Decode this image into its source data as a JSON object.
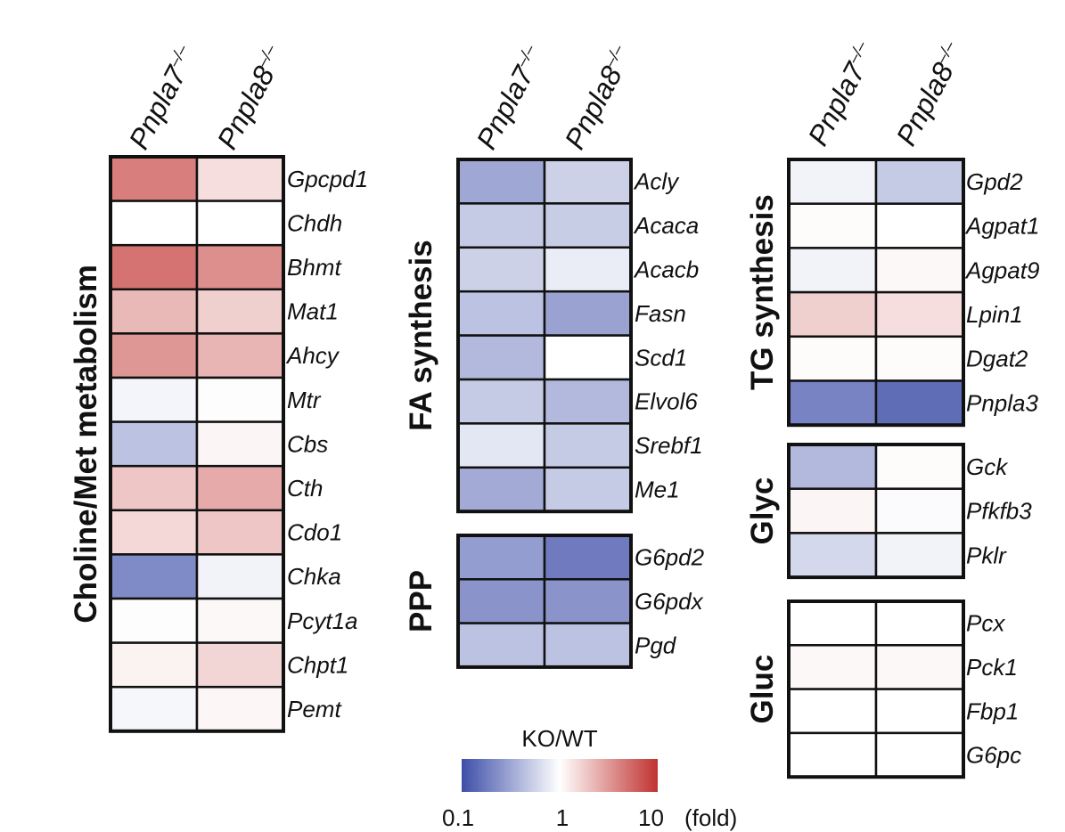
{
  "chart_data": {
    "type": "heatmap",
    "columns": [
      "Pnpla7",
      "Pnpla8"
    ],
    "column_superscript": "–/–",
    "scale": {
      "title": "KO/WT",
      "unit": "(fold)",
      "min": 0.1,
      "mid": 1,
      "max": 10,
      "tick_labels": [
        "0.1",
        "1",
        "10"
      ],
      "low_color": "#3d4ea8",
      "mid_color": "#ffffff",
      "high_color": "#c0322f"
    },
    "panels": [
      {
        "id": "choline",
        "title": "Choline/Met metabolism",
        "rows": [
          {
            "gene": "Gpcpd1",
            "values": [
              4.2,
              1.45
            ]
          },
          {
            "gene": "Chdh",
            "values": [
              1.0,
              1.0
            ]
          },
          {
            "gene": "Bhmt",
            "values": [
              4.8,
              3.5
            ]
          },
          {
            "gene": "Mat1",
            "values": [
              2.2,
              1.7
            ]
          },
          {
            "gene": "Ahcy",
            "values": [
              3.2,
              2.3
            ]
          },
          {
            "gene": "Mtr",
            "values": [
              0.88,
              0.98
            ]
          },
          {
            "gene": "Cbs",
            "values": [
              0.45,
              1.12
            ]
          },
          {
            "gene": "Cth",
            "values": [
              1.9,
              2.6
            ]
          },
          {
            "gene": "Cdo1",
            "values": [
              1.55,
              1.9
            ]
          },
          {
            "gene": "Chka",
            "values": [
              0.22,
              0.86
            ]
          },
          {
            "gene": "Pcyt1a",
            "values": [
              1.02,
              1.08
            ]
          },
          {
            "gene": "Chpt1",
            "values": [
              1.15,
              1.6
            ]
          },
          {
            "gene": "Pemt",
            "values": [
              0.9,
              1.1
            ]
          }
        ]
      },
      {
        "id": "fa",
        "title": "FA synthesis",
        "rows": [
          {
            "gene": "Acly",
            "values": [
              0.32,
              0.55
            ]
          },
          {
            "gene": "Acaca",
            "values": [
              0.5,
              0.52
            ]
          },
          {
            "gene": "Acacb",
            "values": [
              0.55,
              0.78
            ]
          },
          {
            "gene": "Fasn",
            "values": [
              0.45,
              0.3
            ]
          },
          {
            "gene": "Scd1",
            "values": [
              0.4,
              1.0
            ]
          },
          {
            "gene": "Elvol6",
            "values": [
              0.5,
              0.4
            ]
          },
          {
            "gene": "Srebf1",
            "values": [
              0.72,
              0.5
            ]
          },
          {
            "gene": "Me1",
            "values": [
              0.33,
              0.5
            ]
          }
        ]
      },
      {
        "id": "ppp",
        "title": "PPP",
        "rows": [
          {
            "gene": "G6pd2",
            "values": [
              0.28,
              0.18
            ]
          },
          {
            "gene": "G6pdx",
            "values": [
              0.25,
              0.25
            ]
          },
          {
            "gene": "Pgd",
            "values": [
              0.45,
              0.45
            ]
          }
        ]
      },
      {
        "id": "tg",
        "title": "TG synthesis",
        "rows": [
          {
            "gene": "Gpd2",
            "values": [
              0.85,
              0.5
            ]
          },
          {
            "gene": "Agpat1",
            "values": [
              1.05,
              1.0
            ]
          },
          {
            "gene": "Agpat9",
            "values": [
              0.85,
              1.08
            ]
          },
          {
            "gene": "Lpin1",
            "values": [
              1.7,
              1.45
            ]
          },
          {
            "gene": "Dgat2",
            "values": [
              1.05,
              1.04
            ]
          },
          {
            "gene": "Pnpla3",
            "values": [
              0.2,
              0.15
            ]
          }
        ]
      },
      {
        "id": "glyc",
        "title": "Glyc",
        "rows": [
          {
            "gene": "Gck",
            "values": [
              0.4,
              1.05
            ]
          },
          {
            "gene": "Pfkfb3",
            "values": [
              1.12,
              0.95
            ]
          },
          {
            "gene": "Pklr",
            "values": [
              0.6,
              0.85
            ]
          }
        ]
      },
      {
        "id": "gluc",
        "title": "Gluc",
        "rows": [
          {
            "gene": "Pcx",
            "values": [
              1.0,
              1.0
            ]
          },
          {
            "gene": "Pck1",
            "values": [
              1.08,
              1.08
            ]
          },
          {
            "gene": "Fbp1",
            "values": [
              1.0,
              1.0
            ]
          },
          {
            "gene": "G6pc",
            "values": [
              1.0,
              1.0
            ]
          }
        ]
      }
    ]
  }
}
